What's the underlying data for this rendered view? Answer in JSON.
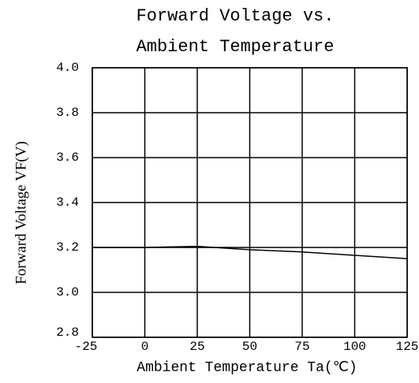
{
  "chart_data": {
    "type": "line",
    "title": [
      "Forward Voltage vs.",
      "Ambient Temperature"
    ],
    "xlabel": "Ambient Temperature Ta(℃)",
    "ylabel": "Forward Voltage VF(V)",
    "x": [
      -25,
      0,
      25,
      50,
      75,
      100,
      125
    ],
    "values": [
      3.2,
      3.2,
      3.205,
      3.19,
      3.18,
      3.165,
      3.15
    ],
    "color": "#000000",
    "xlim": [
      -25,
      125
    ],
    "xticks": [
      -25,
      0,
      25,
      50,
      75,
      100,
      125
    ],
    "ylim": [
      2.8,
      4.0
    ],
    "yticks": [
      {
        "value": 2.8,
        "label": "2.8"
      },
      {
        "value": 3,
        "label": "3.0"
      },
      3.2,
      3.4,
      3.6,
      3.8,
      {
        "value": 4,
        "label": "4.0"
      }
    ],
    "grid": true
  }
}
